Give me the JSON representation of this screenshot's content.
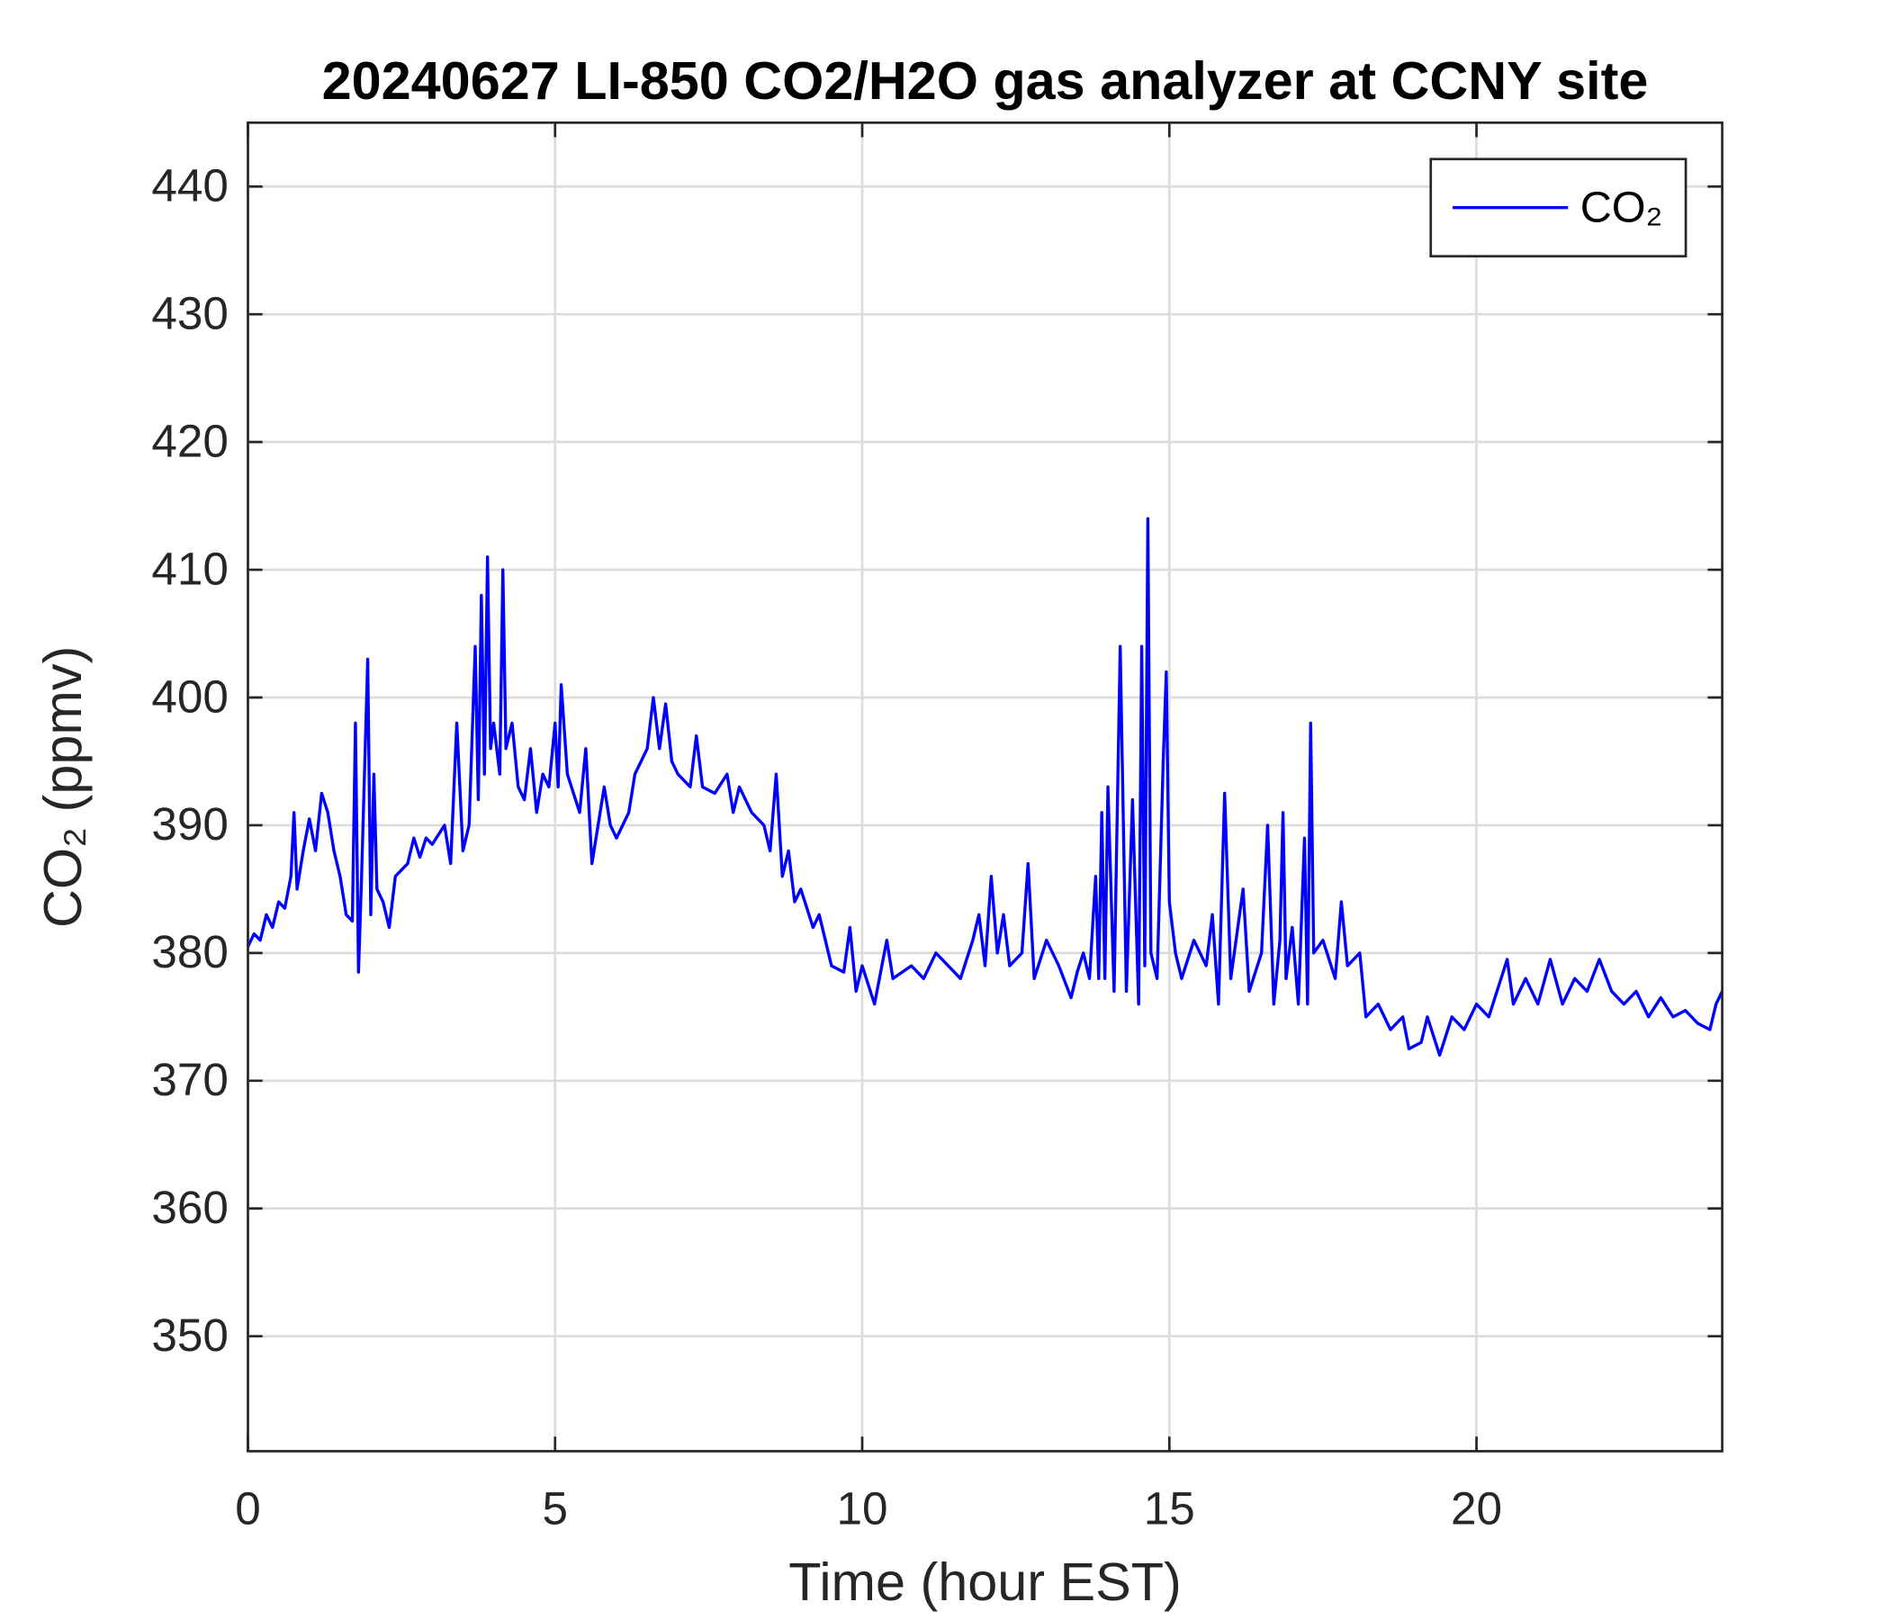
{
  "chart_data": {
    "type": "line",
    "title": "20240627 LI-850 CO2/H2O gas analyzer at CCNY site",
    "xlabel": "Time (hour EST)",
    "ylabel": "CO₂ (ppmv)",
    "xlim": [
      0,
      24
    ],
    "ylim": [
      341,
      445
    ],
    "xticks": [
      0,
      5,
      10,
      15,
      20
    ],
    "yticks": [
      350,
      360,
      370,
      380,
      390,
      400,
      410,
      420,
      430,
      440
    ],
    "grid": true,
    "legend": "northeast",
    "x": [
      0,
      0.1,
      0.2,
      0.3,
      0.4,
      0.5,
      0.6,
      0.7,
      0.75,
      0.8,
      0.9,
      1.0,
      1.1,
      1.2,
      1.3,
      1.4,
      1.5,
      1.6,
      1.7,
      1.75,
      1.8,
      1.85,
      1.95,
      2.0,
      2.05,
      2.1,
      2.2,
      2.3,
      2.4,
      2.5,
      2.6,
      2.7,
      2.8,
      2.9,
      3.0,
      3.2,
      3.3,
      3.4,
      3.5,
      3.6,
      3.7,
      3.75,
      3.8,
      3.85,
      3.9,
      3.95,
      4.0,
      4.1,
      4.15,
      4.2,
      4.3,
      4.4,
      4.5,
      4.6,
      4.7,
      4.8,
      4.9,
      5.0,
      5.05,
      5.1,
      5.2,
      5.4,
      5.5,
      5.6,
      5.7,
      5.8,
      5.9,
      6.0,
      6.2,
      6.3,
      6.4,
      6.5,
      6.6,
      6.7,
      6.8,
      6.9,
      7.0,
      7.2,
      7.3,
      7.4,
      7.6,
      7.8,
      7.9,
      8.0,
      8.2,
      8.4,
      8.5,
      8.6,
      8.7,
      8.8,
      8.9,
      9.0,
      9.2,
      9.3,
      9.5,
      9.7,
      9.8,
      9.9,
      10.0,
      10.2,
      10.4,
      10.5,
      10.8,
      11.0,
      11.2,
      11.4,
      11.6,
      11.8,
      11.9,
      12.0,
      12.1,
      12.2,
      12.3,
      12.4,
      12.6,
      12.7,
      12.8,
      13.0,
      13.2,
      13.4,
      13.5,
      13.6,
      13.7,
      13.8,
      13.85,
      13.9,
      13.95,
      14.0,
      14.1,
      14.2,
      14.3,
      14.4,
      14.5,
      14.55,
      14.6,
      14.65,
      14.7,
      14.8,
      14.9,
      14.95,
      15.0,
      15.1,
      15.2,
      15.4,
      15.6,
      15.7,
      15.8,
      15.9,
      16.0,
      16.2,
      16.3,
      16.5,
      16.6,
      16.7,
      16.8,
      16.85,
      16.9,
      17.0,
      17.1,
      17.2,
      17.25,
      17.3,
      17.35,
      17.5,
      17.7,
      17.8,
      17.9,
      18.1,
      18.2,
      18.4,
      18.6,
      18.8,
      18.9,
      19.1,
      19.2,
      19.4,
      19.6,
      19.8,
      20.0,
      20.2,
      20.4,
      20.5,
      20.6,
      20.8,
      21.0,
      21.2,
      21.4,
      21.6,
      21.8,
      22.0,
      22.2,
      22.4,
      22.6,
      22.8,
      23.0,
      23.2,
      23.4,
      23.6,
      23.8,
      23.9,
      24.0
    ],
    "series": [
      {
        "name": "CO₂",
        "color": "#0000ff",
        "values": [
          380.5,
          381.5,
          381,
          383,
          382,
          384,
          383.5,
          386,
          391,
          385,
          388,
          390.5,
          388,
          392.5,
          391,
          388,
          386,
          383,
          382.5,
          398,
          378.5,
          386,
          403,
          383,
          394,
          385,
          384,
          382,
          386,
          386.5,
          387,
          389,
          387.5,
          389,
          388.5,
          390,
          387,
          398,
          388,
          390,
          404,
          392,
          408,
          394,
          411,
          396,
          398,
          394,
          410,
          396,
          398,
          393,
          392,
          396,
          391,
          394,
          393,
          398,
          393,
          401,
          394,
          391,
          396,
          387,
          390,
          393,
          390,
          389,
          391,
          394,
          395,
          396,
          400,
          396,
          399.5,
          395,
          394,
          393,
          397,
          393,
          392.5,
          394,
          391,
          393,
          391,
          390,
          388,
          394,
          386,
          388,
          384,
          385,
          382,
          383,
          379,
          378.5,
          382,
          377,
          379,
          376,
          381,
          378,
          379,
          378,
          380,
          379,
          378,
          381,
          383,
          379,
          386,
          380,
          383,
          379,
          380,
          387,
          378,
          381,
          379,
          376.5,
          378.5,
          380,
          378,
          386,
          378,
          391,
          378,
          393,
          377,
          404,
          377,
          392,
          376,
          404,
          379,
          414,
          380,
          378,
          395,
          402,
          384,
          380,
          378,
          381,
          379,
          383,
          376,
          392.5,
          378,
          385,
          377,
          380,
          390,
          376,
          381,
          391,
          378,
          382,
          376,
          389,
          376,
          398,
          380,
          381,
          378,
          384,
          379,
          380,
          375,
          376,
          374,
          375,
          372.5,
          373,
          375,
          372,
          375,
          374,
          376,
          375,
          378,
          379.5,
          376,
          378,
          376,
          379.5,
          376,
          378,
          377,
          379.5,
          377,
          376,
          377,
          375,
          376.5,
          375,
          375.5,
          374.5,
          374,
          376,
          377
        ]
      }
    ]
  }
}
